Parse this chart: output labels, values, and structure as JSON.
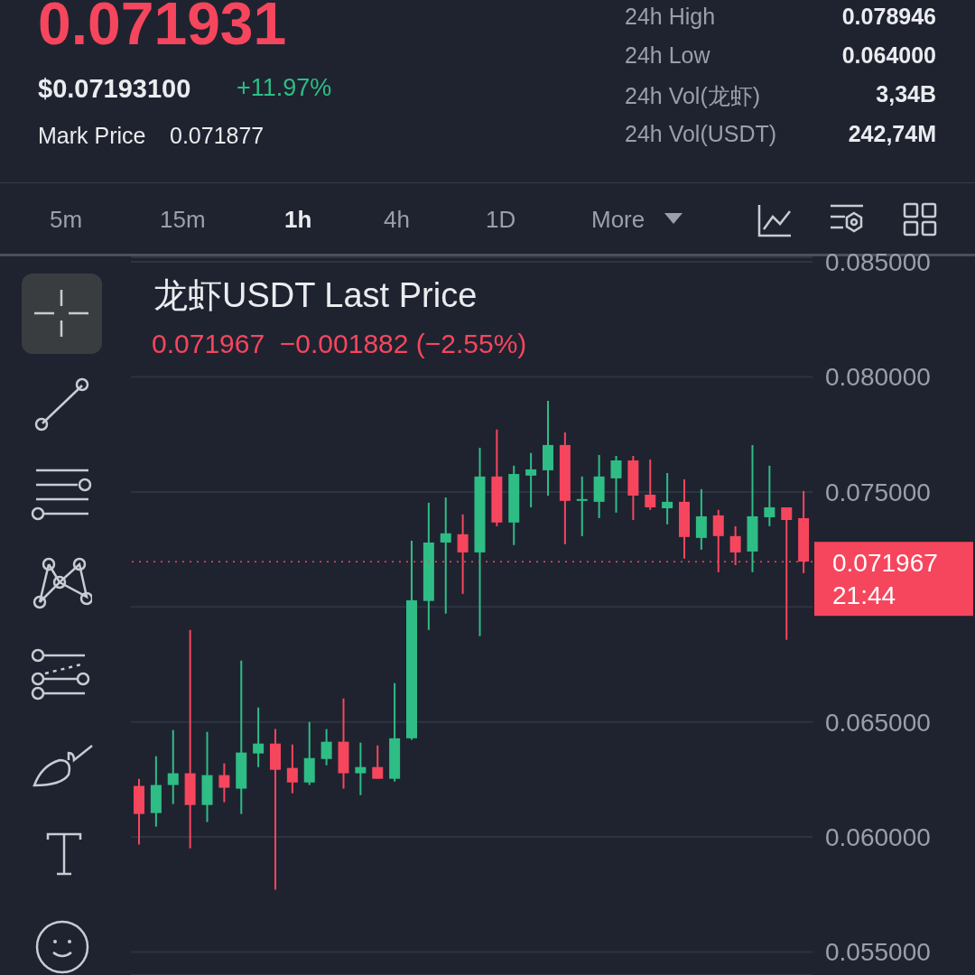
{
  "chart_data": {
    "type": "candlestick",
    "title": "龙虾USDT Last Price",
    "subtitle": "0.071967  −0.001882 (−2.55%)",
    "annotations": [
      "0.071931",
      "$0.07193100",
      "+11.97%",
      "Mark Price",
      "0.071877",
      "24h High",
      "0.078946",
      "24h Low",
      "0.064000",
      "24h Vol(龙虾)",
      "3,34B",
      "24h Vol(USDT)",
      "242,74M",
      "5m",
      "15m",
      "1h",
      "4h",
      "1D",
      "More"
    ],
    "categories": [
      null,
      null,
      null,
      null,
      null,
      null,
      null,
      null,
      null,
      null,
      null,
      null,
      null,
      null,
      null,
      null,
      null,
      null,
      null,
      null,
      null,
      null,
      null,
      null,
      null,
      null,
      null,
      null,
      null,
      null,
      null,
      null,
      null,
      null,
      null,
      null,
      null,
      null,
      null,
      null
    ],
    "ohlc": [
      [
        0.06222,
        0.06253,
        0.05967,
        0.061
      ],
      [
        0.06104,
        0.06351,
        0.06045,
        0.06226
      ],
      [
        0.06226,
        0.06465,
        0.06143,
        0.06277
      ],
      [
        0.06277,
        0.069,
        0.05951,
        0.06139
      ],
      [
        0.06139,
        0.06457,
        0.06065,
        0.06269
      ],
      [
        0.06269,
        0.0632,
        0.06151,
        0.06214
      ],
      [
        0.0621,
        0.06767,
        0.061,
        0.06367
      ],
      [
        0.06363,
        0.06563,
        0.06304,
        0.06406
      ],
      [
        0.06406,
        0.06469,
        0.05771,
        0.06292
      ],
      [
        0.063,
        0.06402,
        0.0619,
        0.06237
      ],
      [
        0.06237,
        0.065,
        0.06226,
        0.06343
      ],
      [
        0.06339,
        0.06469,
        0.06312,
        0.06414
      ],
      [
        0.06414,
        0.06602,
        0.0621,
        0.06277
      ],
      [
        0.06277,
        0.0641,
        0.06182,
        0.06304
      ],
      [
        0.06304,
        0.06398,
        0.06253,
        0.06253
      ],
      [
        0.06253,
        0.06669,
        0.06241,
        0.06429
      ],
      [
        0.06429,
        0.07288,
        0.06422,
        0.07029
      ],
      [
        0.07026,
        0.07453,
        0.069,
        0.0728
      ],
      [
        0.0728,
        0.07476,
        0.06971,
        0.0732
      ],
      [
        0.07316,
        0.07402,
        0.07057,
        0.07237
      ],
      [
        0.07237,
        0.07692,
        0.06873,
        0.07567
      ],
      [
        0.07567,
        0.07771,
        0.07351,
        0.07367
      ],
      [
        0.07367,
        0.07614,
        0.07269,
        0.07578
      ],
      [
        0.07571,
        0.07669,
        0.07433,
        0.07598
      ],
      [
        0.07594,
        0.07896,
        0.07484,
        0.07704
      ],
      [
        0.07704,
        0.07759,
        0.07273,
        0.07461
      ],
      [
        0.07461,
        0.07567,
        0.07308,
        0.07469
      ],
      [
        0.07457,
        0.07661,
        0.07386,
        0.07567
      ],
      [
        0.07559,
        0.07657,
        0.0741,
        0.07637
      ],
      [
        0.07637,
        0.07657,
        0.07378,
        0.07484
      ],
      [
        0.07488,
        0.07641,
        0.07422,
        0.07433
      ],
      [
        0.07429,
        0.07582,
        0.07359,
        0.07457
      ],
      [
        0.07457,
        0.07555,
        0.0721,
        0.07304
      ],
      [
        0.073,
        0.07512,
        0.07249,
        0.07394
      ],
      [
        0.07398,
        0.07422,
        0.07151,
        0.07308
      ],
      [
        0.07308,
        0.07351,
        0.07182,
        0.07237
      ],
      [
        0.07241,
        0.07704,
        0.07151,
        0.07394
      ],
      [
        0.0739,
        0.07614,
        0.07351,
        0.07433
      ],
      [
        0.07433,
        0.07433,
        0.06857,
        0.07378
      ],
      [
        0.07386,
        0.07504,
        0.07147,
        0.07197
      ]
    ],
    "colors": [
      "#f6465d",
      "#2ebd85",
      "#2ebd85",
      "#f6465d",
      "#2ebd85",
      "#f6465d",
      "#2ebd85",
      "#2ebd85",
      "#f6465d",
      "#f6465d",
      "#2ebd85",
      "#2ebd85",
      "#f6465d",
      "#2ebd85",
      "#f6465d",
      "#2ebd85",
      "#2ebd85",
      "#2ebd85",
      "#2ebd85",
      "#f6465d",
      "#2ebd85",
      "#f6465d",
      "#2ebd85",
      "#2ebd85",
      "#2ebd85",
      "#f6465d",
      "#2ebd85",
      "#2ebd85",
      "#2ebd85",
      "#f6465d",
      "#f6465d",
      "#2ebd85",
      "#f6465d",
      "#2ebd85",
      "#f6465d",
      "#f6465d",
      "#2ebd85",
      "#2ebd85",
      "#f6465d",
      "#f6465d"
    ],
    "ylim": [
      0.054,
      0.0852
    ],
    "yticks": [
      {
        "value": 0.085,
        "label": "0.085000"
      },
      {
        "value": 0.08,
        "label": "0.080000"
      },
      {
        "value": 0.075,
        "label": "0.075000"
      },
      {
        "value": 0.07,
        "label": null
      },
      {
        "value": 0.065,
        "label": "0.065000"
      },
      {
        "value": 0.06,
        "label": "0.060000"
      },
      {
        "value": 0.055,
        "label": "0.055000"
      }
    ],
    "grid": "y",
    "ref_lines": [
      {
        "axis": "y",
        "value": 0.071967,
        "label": "0.071967 21:44",
        "color": "#f6465d",
        "line_style": "dotted"
      }
    ]
  }
}
